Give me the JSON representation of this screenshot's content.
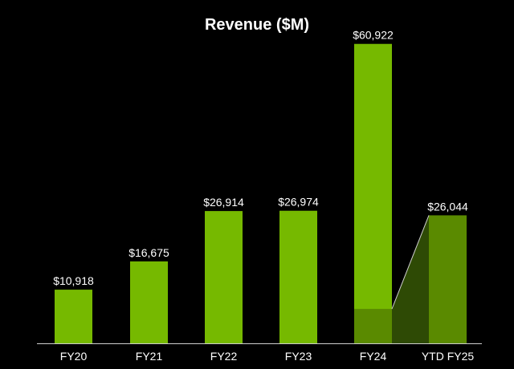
{
  "colors": {
    "background": "#000000",
    "bar": "#76b900",
    "highlight_bar": "#5a8a00",
    "highlight_area": "#2e4a05",
    "q_segment": "#5a8a00",
    "connector": "#cfcfcf",
    "axis": "#cfcfcf",
    "text": "#ffffff"
  },
  "chart_data": {
    "type": "bar",
    "title": "Revenue ($M)",
    "categories": [
      "FY20",
      "FY21",
      "FY22",
      "FY23",
      "FY24",
      "YTD FY25"
    ],
    "values": [
      10918,
      16675,
      26914,
      26974,
      60922,
      26044
    ],
    "value_labels": [
      "$10,918",
      "$16,675",
      "$26,914",
      "$26,974",
      "$60,922",
      "$26,044"
    ],
    "highlighted_bar_index": 5,
    "fy24_darker_bottom_segment": 7000,
    "connector": {
      "from_category": "FY24",
      "to_category": "YTD FY25"
    },
    "ylim": [
      0,
      63000
    ],
    "grid": false,
    "legend": "none",
    "xlabel": "",
    "ylabel": ""
  }
}
